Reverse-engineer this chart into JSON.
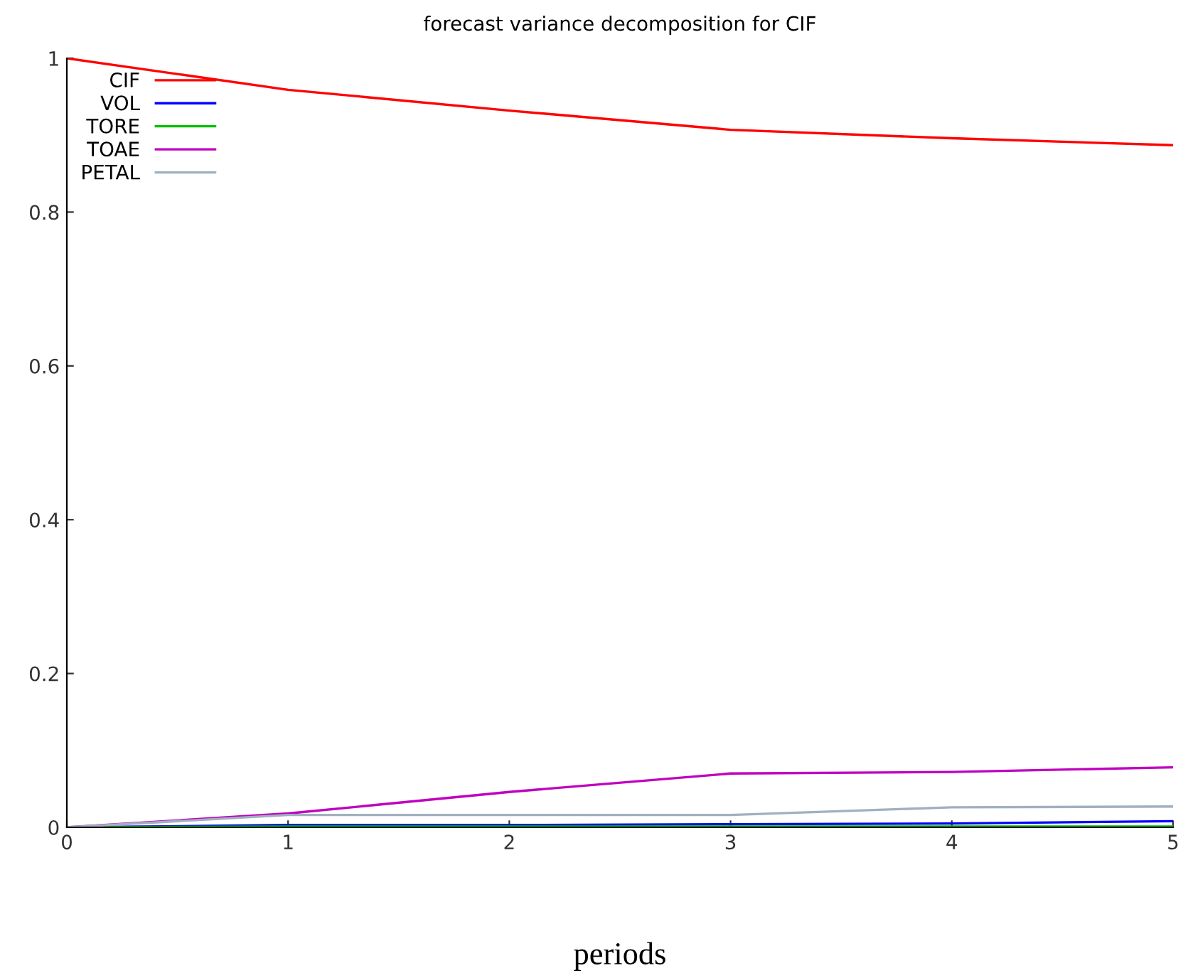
{
  "chart_data": {
    "type": "line",
    "title": "forecast variance decomposition for CIF",
    "xlabel": "periods",
    "x": [
      0,
      1,
      2,
      3,
      4,
      5
    ],
    "series": [
      {
        "name": "CIF",
        "color": "#ff0000",
        "values": [
          1,
          0.959,
          0.932,
          0.907,
          0.896,
          0.887
        ]
      },
      {
        "name": "VOL",
        "color": "#0000ff",
        "values": [
          0,
          0.003,
          0.003,
          0.004,
          0.005,
          0.008
        ]
      },
      {
        "name": "TORE",
        "color": "#00c000",
        "values": [
          0,
          0.001,
          0.001,
          0.001,
          0.001,
          0.001
        ]
      },
      {
        "name": "TOAE",
        "color": "#c000c0",
        "values": [
          0,
          0.018,
          0.046,
          0.07,
          0.072,
          0.078
        ]
      },
      {
        "name": "PETAL",
        "color": "#a0b0c0",
        "values": [
          0,
          0.016,
          0.016,
          0.016,
          0.026,
          0.027
        ]
      }
    ],
    "xlim": [
      0,
      5
    ],
    "xticks": [
      0,
      1,
      2,
      3,
      4,
      5
    ],
    "ylim": [
      0,
      1
    ],
    "yticks": [
      0,
      0.2,
      0.4,
      0.6,
      0.8,
      1
    ],
    "grid": false,
    "legend": "top left",
    "marker": "none",
    "line_style": "solid"
  }
}
